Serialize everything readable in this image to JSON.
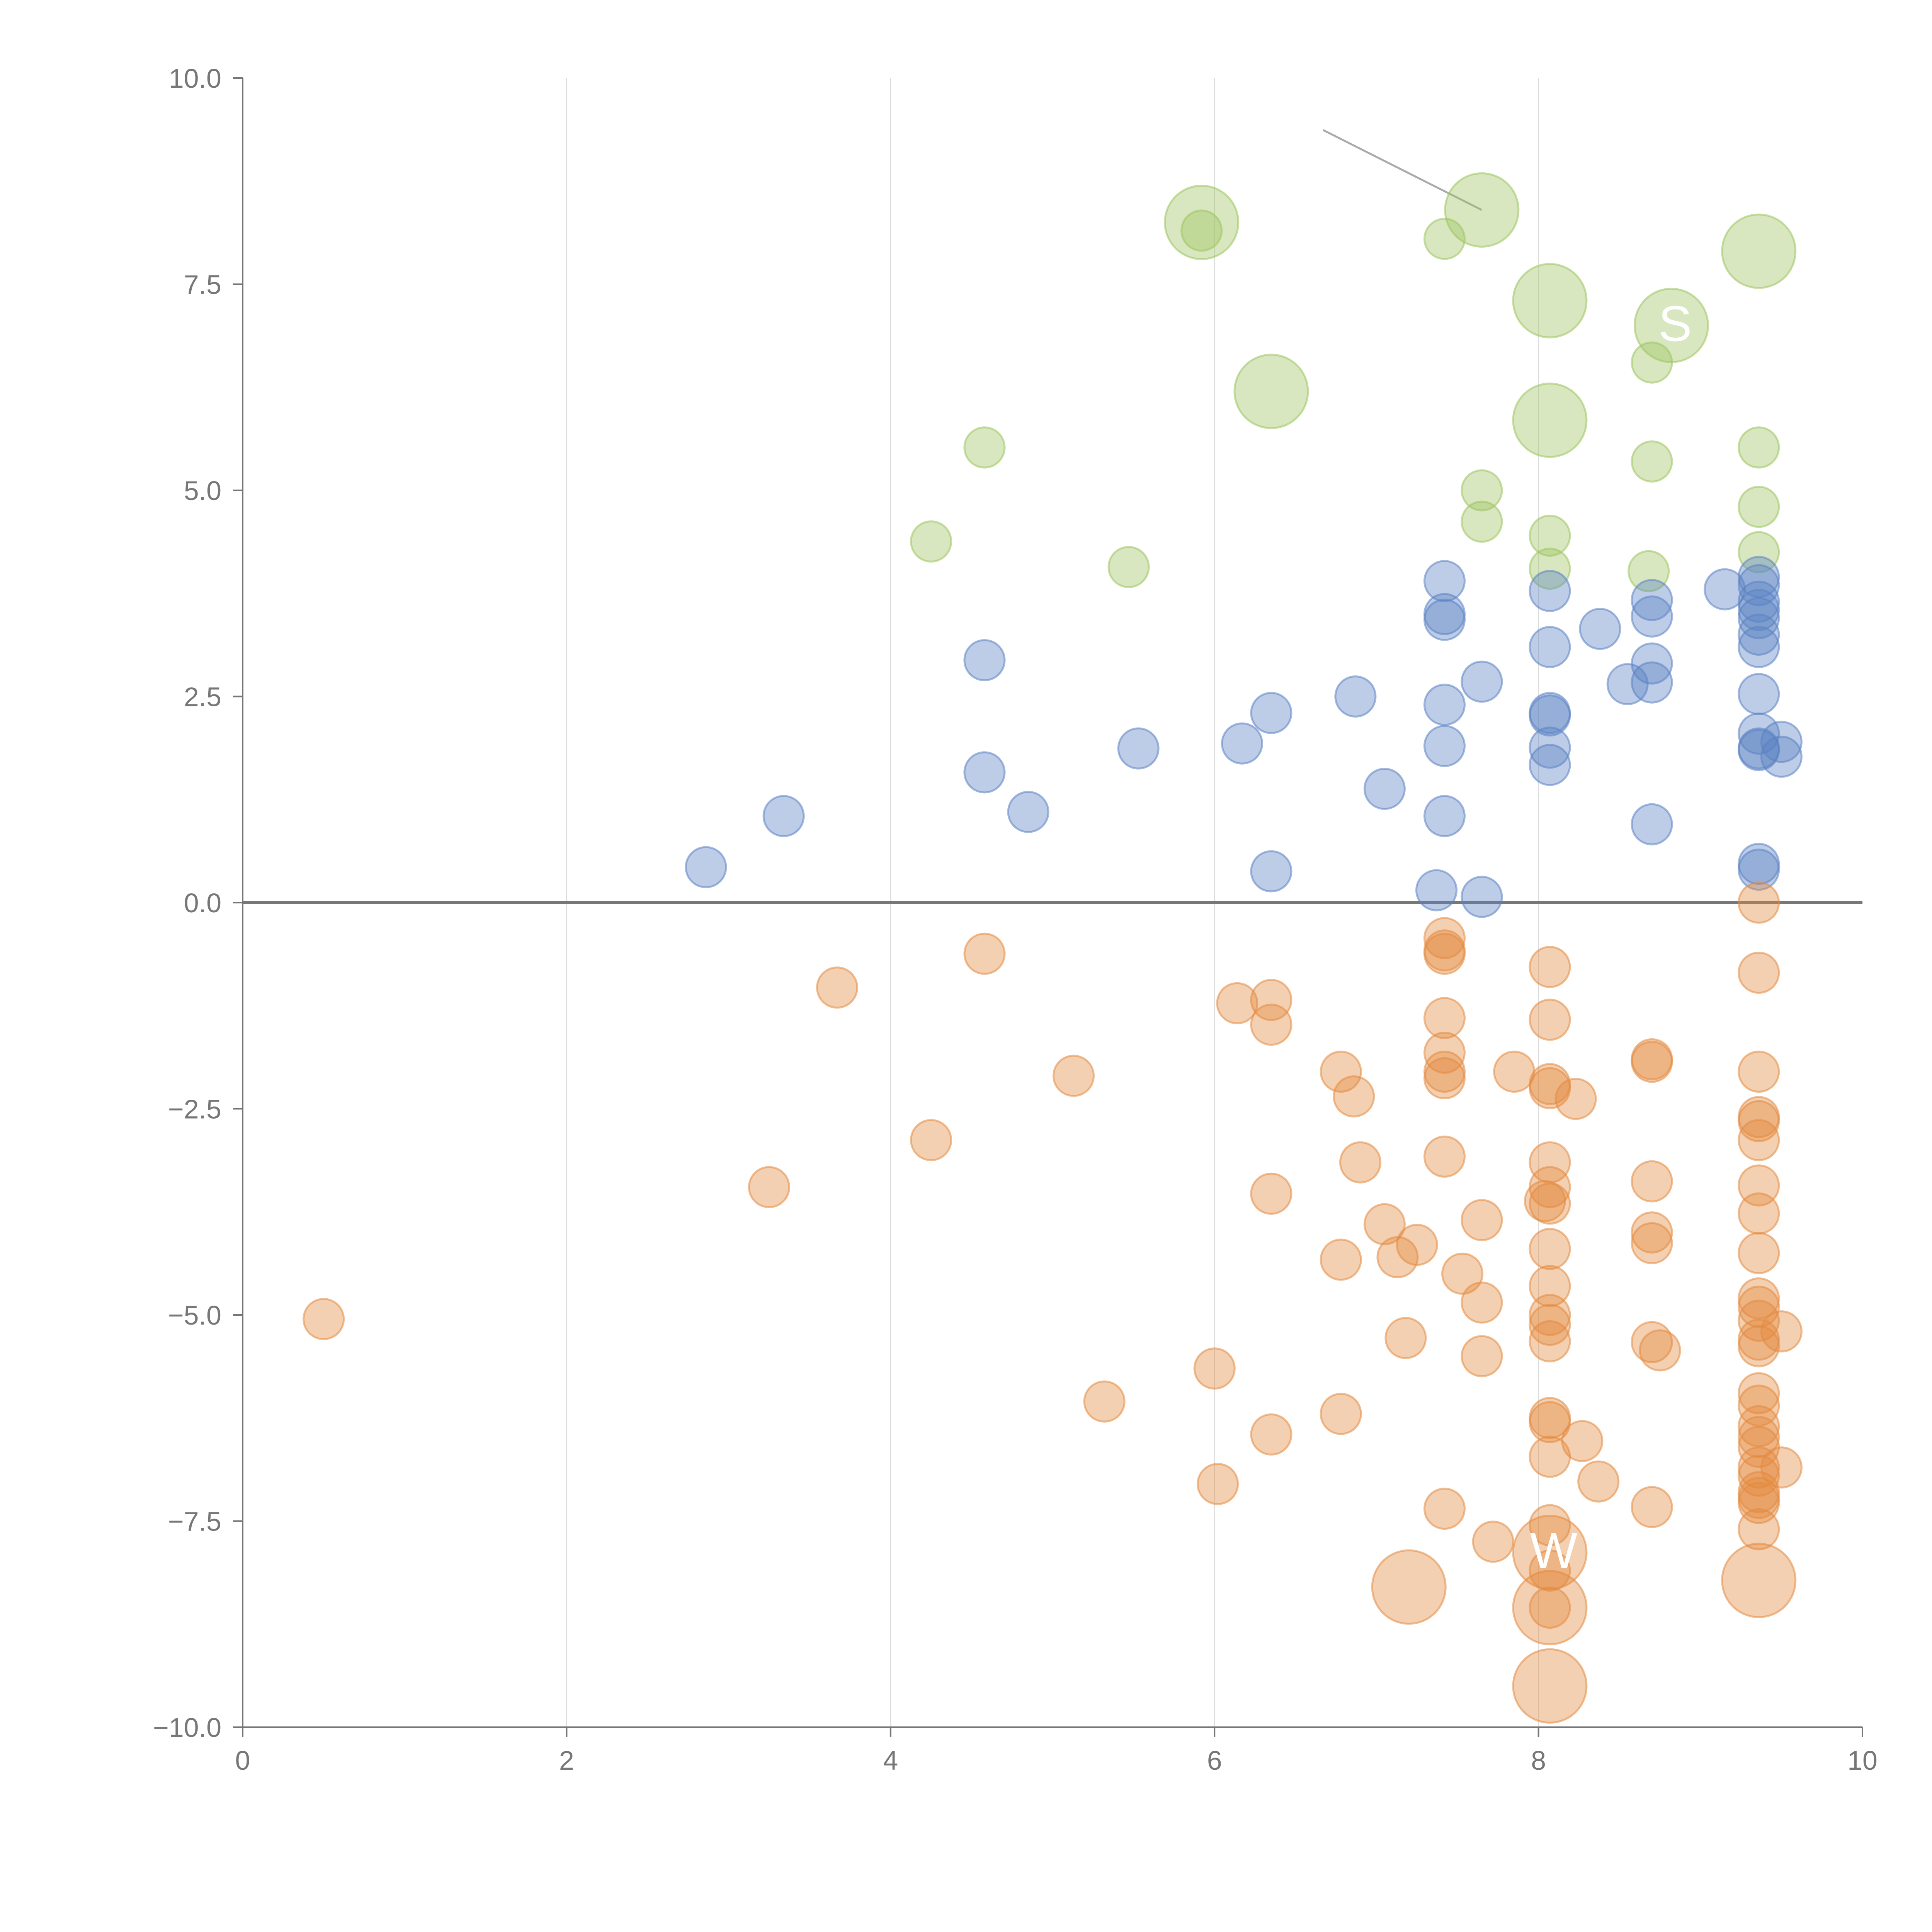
{
  "chart_data": {
    "type": "scatter",
    "title": "",
    "xlabel": "",
    "ylabel": "",
    "xlim": [
      0,
      10
    ],
    "ylim": [
      -10,
      10
    ],
    "grid": "vertical",
    "x_ticks": [
      "0",
      "2",
      "4",
      "6",
      "8",
      "10"
    ],
    "y_ticks": [
      "10.0",
      "7.5",
      "5.0",
      "2.5",
      "0.0",
      "−2.5",
      "−5.0",
      "−7.5",
      "−10.0"
    ],
    "x_tick_values": [
      0,
      2,
      4,
      6,
      8,
      10
    ],
    "y_tick_values": [
      10,
      7.5,
      5,
      2.5,
      0,
      -2.5,
      -5,
      -7.5,
      -10
    ],
    "colors": {
      "green": "#9dc45f",
      "blue": "#5b82c4",
      "orange": "#e38a3f",
      "axis": "#777777",
      "grid": "#dddddd"
    },
    "series": [
      {
        "name": "green",
        "color": "#9dc45f",
        "points": [
          {
            "x": 5.92,
            "y": 8.25,
            "s": 3
          },
          {
            "x": 5.92,
            "y": 8.15,
            "s": 1
          },
          {
            "x": 6.35,
            "y": 6.2,
            "s": 3
          },
          {
            "x": 4.58,
            "y": 5.52,
            "s": 1
          },
          {
            "x": 4.25,
            "y": 4.38,
            "s": 1
          },
          {
            "x": 5.47,
            "y": 4.07,
            "s": 1
          },
          {
            "x": 7.42,
            "y": 8.05,
            "s": 1
          },
          {
            "x": 7.65,
            "y": 8.4,
            "s": 3
          },
          {
            "x": 7.65,
            "y": 5.0,
            "s": 1
          },
          {
            "x": 7.65,
            "y": 4.62,
            "s": 1
          },
          {
            "x": 8.07,
            "y": 7.3,
            "s": 3
          },
          {
            "x": 8.07,
            "y": 5.85,
            "s": 3
          },
          {
            "x": 8.07,
            "y": 4.45,
            "s": 1
          },
          {
            "x": 8.07,
            "y": 4.05,
            "s": 1
          },
          {
            "x": 8.82,
            "y": 7.0,
            "s": 3,
            "label": "S"
          },
          {
            "x": 8.7,
            "y": 6.55,
            "s": 1
          },
          {
            "x": 8.7,
            "y": 5.35,
            "s": 1
          },
          {
            "x": 8.68,
            "y": 4.02,
            "s": 1
          },
          {
            "x": 9.36,
            "y": 7.9,
            "s": 3
          },
          {
            "x": 9.36,
            "y": 5.52,
            "s": 1
          },
          {
            "x": 9.36,
            "y": 4.8,
            "s": 1
          },
          {
            "x": 9.36,
            "y": 4.25,
            "s": 1
          }
        ]
      },
      {
        "name": "blue",
        "color": "#5b82c4",
        "points": [
          {
            "x": 2.86,
            "y": 0.43,
            "s": 1
          },
          {
            "x": 3.34,
            "y": 1.05,
            "s": 1
          },
          {
            "x": 4.58,
            "y": 2.94,
            "s": 1
          },
          {
            "x": 4.58,
            "y": 1.58,
            "s": 1
          },
          {
            "x": 4.85,
            "y": 1.1,
            "s": 1
          },
          {
            "x": 5.53,
            "y": 1.87,
            "s": 1
          },
          {
            "x": 6.17,
            "y": 1.93,
            "s": 1
          },
          {
            "x": 6.35,
            "y": 2.3,
            "s": 1
          },
          {
            "x": 6.35,
            "y": 0.38,
            "s": 1
          },
          {
            "x": 6.87,
            "y": 2.5,
            "s": 1
          },
          {
            "x": 7.05,
            "y": 1.38,
            "s": 1
          },
          {
            "x": 7.42,
            "y": 3.9,
            "s": 1
          },
          {
            "x": 7.42,
            "y": 3.5,
            "s": 1
          },
          {
            "x": 7.42,
            "y": 3.43,
            "s": 1
          },
          {
            "x": 7.42,
            "y": 2.4,
            "s": 1
          },
          {
            "x": 7.42,
            "y": 1.9,
            "s": 1
          },
          {
            "x": 7.42,
            "y": 1.05,
            "s": 1
          },
          {
            "x": 7.37,
            "y": 0.15,
            "s": 1
          },
          {
            "x": 7.65,
            "y": 2.68,
            "s": 1
          },
          {
            "x": 7.65,
            "y": 0.07,
            "s": 1
          },
          {
            "x": 8.07,
            "y": 3.78,
            "s": 1
          },
          {
            "x": 8.07,
            "y": 3.1,
            "s": 1
          },
          {
            "x": 8.07,
            "y": 2.3,
            "s": 1
          },
          {
            "x": 8.07,
            "y": 2.27,
            "s": 1
          },
          {
            "x": 8.07,
            "y": 1.88,
            "s": 1
          },
          {
            "x": 8.07,
            "y": 1.67,
            "s": 1
          },
          {
            "x": 8.38,
            "y": 3.32,
            "s": 1
          },
          {
            "x": 8.55,
            "y": 2.65,
            "s": 1
          },
          {
            "x": 8.7,
            "y": 3.67,
            "s": 1
          },
          {
            "x": 8.7,
            "y": 3.47,
            "s": 1
          },
          {
            "x": 8.7,
            "y": 2.9,
            "s": 1
          },
          {
            "x": 8.7,
            "y": 2.67,
            "s": 1
          },
          {
            "x": 8.7,
            "y": 0.95,
            "s": 1
          },
          {
            "x": 9.15,
            "y": 3.8,
            "s": 1
          },
          {
            "x": 9.36,
            "y": 3.95,
            "s": 1
          },
          {
            "x": 9.36,
            "y": 3.85,
            "s": 1
          },
          {
            "x": 9.36,
            "y": 3.65,
            "s": 1
          },
          {
            "x": 9.36,
            "y": 3.55,
            "s": 1
          },
          {
            "x": 9.36,
            "y": 3.45,
            "s": 1
          },
          {
            "x": 9.36,
            "y": 3.25,
            "s": 1
          },
          {
            "x": 9.36,
            "y": 3.1,
            "s": 1
          },
          {
            "x": 9.36,
            "y": 2.53,
            "s": 1
          },
          {
            "x": 9.36,
            "y": 2.05,
            "s": 1
          },
          {
            "x": 9.36,
            "y": 1.87,
            "s": 1
          },
          {
            "x": 9.36,
            "y": 1.85,
            "s": 1
          },
          {
            "x": 9.36,
            "y": 0.47,
            "s": 1
          },
          {
            "x": 9.36,
            "y": 0.4,
            "s": 1
          },
          {
            "x": 9.5,
            "y": 1.95,
            "s": 1
          },
          {
            "x": 9.5,
            "y": 1.77,
            "s": 1
          }
        ]
      },
      {
        "name": "orange",
        "color": "#e38a3f",
        "points": [
          {
            "x": 0.5,
            "y": -5.05,
            "s": 1
          },
          {
            "x": 3.25,
            "y": -3.45,
            "s": 1
          },
          {
            "x": 3.67,
            "y": -1.03,
            "s": 1
          },
          {
            "x": 4.25,
            "y": -2.88,
            "s": 1
          },
          {
            "x": 4.58,
            "y": -0.62,
            "s": 1
          },
          {
            "x": 5.13,
            "y": -2.1,
            "s": 1
          },
          {
            "x": 5.32,
            "y": -6.05,
            "s": 1
          },
          {
            "x": 6.0,
            "y": -5.65,
            "s": 1
          },
          {
            "x": 6.02,
            "y": -7.05,
            "s": 1
          },
          {
            "x": 6.14,
            "y": -1.22,
            "s": 1
          },
          {
            "x": 6.35,
            "y": -1.18,
            "s": 1
          },
          {
            "x": 6.35,
            "y": -1.48,
            "s": 1
          },
          {
            "x": 6.35,
            "y": -3.53,
            "s": 1
          },
          {
            "x": 6.35,
            "y": -6.45,
            "s": 1
          },
          {
            "x": 6.78,
            "y": -2.05,
            "s": 1
          },
          {
            "x": 6.86,
            "y": -2.35,
            "s": 1
          },
          {
            "x": 6.9,
            "y": -3.15,
            "s": 1
          },
          {
            "x": 6.78,
            "y": -4.33,
            "s": 1
          },
          {
            "x": 6.78,
            "y": -6.2,
            "s": 1
          },
          {
            "x": 7.05,
            "y": -3.9,
            "s": 1
          },
          {
            "x": 7.13,
            "y": -4.3,
            "s": 1
          },
          {
            "x": 7.25,
            "y": -4.15,
            "s": 1
          },
          {
            "x": 7.18,
            "y": -5.28,
            "s": 1
          },
          {
            "x": 7.2,
            "y": -8.3,
            "s": 3
          },
          {
            "x": 7.42,
            "y": -0.43,
            "s": 1
          },
          {
            "x": 7.42,
            "y": -0.58,
            "s": 1
          },
          {
            "x": 7.42,
            "y": -0.62,
            "s": 1
          },
          {
            "x": 7.42,
            "y": -1.4,
            "s": 1
          },
          {
            "x": 7.42,
            "y": -1.82,
            "s": 1
          },
          {
            "x": 7.42,
            "y": -2.05,
            "s": 1
          },
          {
            "x": 7.42,
            "y": -2.13,
            "s": 1
          },
          {
            "x": 7.42,
            "y": -3.08,
            "s": 1
          },
          {
            "x": 7.42,
            "y": -7.35,
            "s": 1
          },
          {
            "x": 7.53,
            "y": -4.5,
            "s": 1
          },
          {
            "x": 7.65,
            "y": -3.85,
            "s": 1
          },
          {
            "x": 7.65,
            "y": -4.85,
            "s": 1
          },
          {
            "x": 7.65,
            "y": -5.5,
            "s": 1
          },
          {
            "x": 7.72,
            "y": -7.75,
            "s": 1
          },
          {
            "x": 7.85,
            "y": -2.05,
            "s": 1
          },
          {
            "x": 8.07,
            "y": -0.78,
            "s": 1
          },
          {
            "x": 8.07,
            "y": -1.42,
            "s": 1
          },
          {
            "x": 8.07,
            "y": -2.2,
            "s": 1
          },
          {
            "x": 8.07,
            "y": -2.25,
            "s": 1
          },
          {
            "x": 8.07,
            "y": -3.15,
            "s": 1
          },
          {
            "x": 8.07,
            "y": -3.45,
            "s": 1
          },
          {
            "x": 8.07,
            "y": -3.65,
            "s": 1
          },
          {
            "x": 8.04,
            "y": -3.62,
            "s": 1
          },
          {
            "x": 8.07,
            "y": -4.2,
            "s": 1
          },
          {
            "x": 8.07,
            "y": -4.65,
            "s": 1
          },
          {
            "x": 8.07,
            "y": -5.0,
            "s": 1
          },
          {
            "x": 8.07,
            "y": -5.12,
            "s": 1
          },
          {
            "x": 8.07,
            "y": -5.32,
            "s": 1
          },
          {
            "x": 8.07,
            "y": -6.25,
            "s": 1
          },
          {
            "x": 8.07,
            "y": -6.3,
            "s": 1
          },
          {
            "x": 8.07,
            "y": -6.72,
            "s": 1
          },
          {
            "x": 8.07,
            "y": -7.55,
            "s": 1
          },
          {
            "x": 8.07,
            "y": -7.88,
            "s": 3,
            "label": "W"
          },
          {
            "x": 8.07,
            "y": -8.1,
            "s": 1
          },
          {
            "x": 8.07,
            "y": -8.55,
            "s": 3
          },
          {
            "x": 8.07,
            "y": -8.55,
            "s": 1
          },
          {
            "x": 8.07,
            "y": -9.5,
            "s": 3
          },
          {
            "x": 8.23,
            "y": -2.38,
            "s": 1
          },
          {
            "x": 8.27,
            "y": -6.53,
            "s": 1
          },
          {
            "x": 8.37,
            "y": -7.02,
            "s": 1
          },
          {
            "x": 8.7,
            "y": -1.9,
            "s": 1
          },
          {
            "x": 8.7,
            "y": -1.93,
            "s": 1
          },
          {
            "x": 8.7,
            "y": -3.38,
            "s": 1
          },
          {
            "x": 8.7,
            "y": -4.0,
            "s": 1
          },
          {
            "x": 8.7,
            "y": -4.13,
            "s": 1
          },
          {
            "x": 8.7,
            "y": -5.33,
            "s": 1
          },
          {
            "x": 8.75,
            "y": -5.43,
            "s": 1
          },
          {
            "x": 8.7,
            "y": -7.33,
            "s": 1
          },
          {
            "x": 9.36,
            "y": 0.0,
            "s": 1
          },
          {
            "x": 9.36,
            "y": -0.85,
            "s": 1
          },
          {
            "x": 9.36,
            "y": -2.05,
            "s": 1
          },
          {
            "x": 9.36,
            "y": -2.6,
            "s": 1
          },
          {
            "x": 9.36,
            "y": -2.65,
            "s": 1
          },
          {
            "x": 9.36,
            "y": -2.88,
            "s": 1
          },
          {
            "x": 9.36,
            "y": -3.43,
            "s": 1
          },
          {
            "x": 9.36,
            "y": -3.77,
            "s": 1
          },
          {
            "x": 9.36,
            "y": -4.25,
            "s": 1
          },
          {
            "x": 9.36,
            "y": -4.8,
            "s": 1
          },
          {
            "x": 9.36,
            "y": -4.9,
            "s": 1
          },
          {
            "x": 9.36,
            "y": -5.07,
            "s": 1
          },
          {
            "x": 9.36,
            "y": -5.3,
            "s": 1
          },
          {
            "x": 9.36,
            "y": -5.38,
            "s": 1
          },
          {
            "x": 9.36,
            "y": -5.95,
            "s": 1
          },
          {
            "x": 9.36,
            "y": -6.1,
            "s": 1
          },
          {
            "x": 9.36,
            "y": -6.35,
            "s": 1
          },
          {
            "x": 9.36,
            "y": -6.48,
            "s": 1
          },
          {
            "x": 9.36,
            "y": -6.6,
            "s": 1
          },
          {
            "x": 9.36,
            "y": -6.85,
            "s": 1
          },
          {
            "x": 9.36,
            "y": -6.95,
            "s": 1
          },
          {
            "x": 9.36,
            "y": -7.15,
            "s": 1
          },
          {
            "x": 9.36,
            "y": -7.22,
            "s": 1
          },
          {
            "x": 9.36,
            "y": -7.28,
            "s": 1
          },
          {
            "x": 9.36,
            "y": -7.6,
            "s": 1
          },
          {
            "x": 9.36,
            "y": -8.22,
            "s": 3
          },
          {
            "x": 9.5,
            "y": -5.2,
            "s": 1
          },
          {
            "x": 9.5,
            "y": -6.85,
            "s": 1
          }
        ]
      }
    ]
  }
}
